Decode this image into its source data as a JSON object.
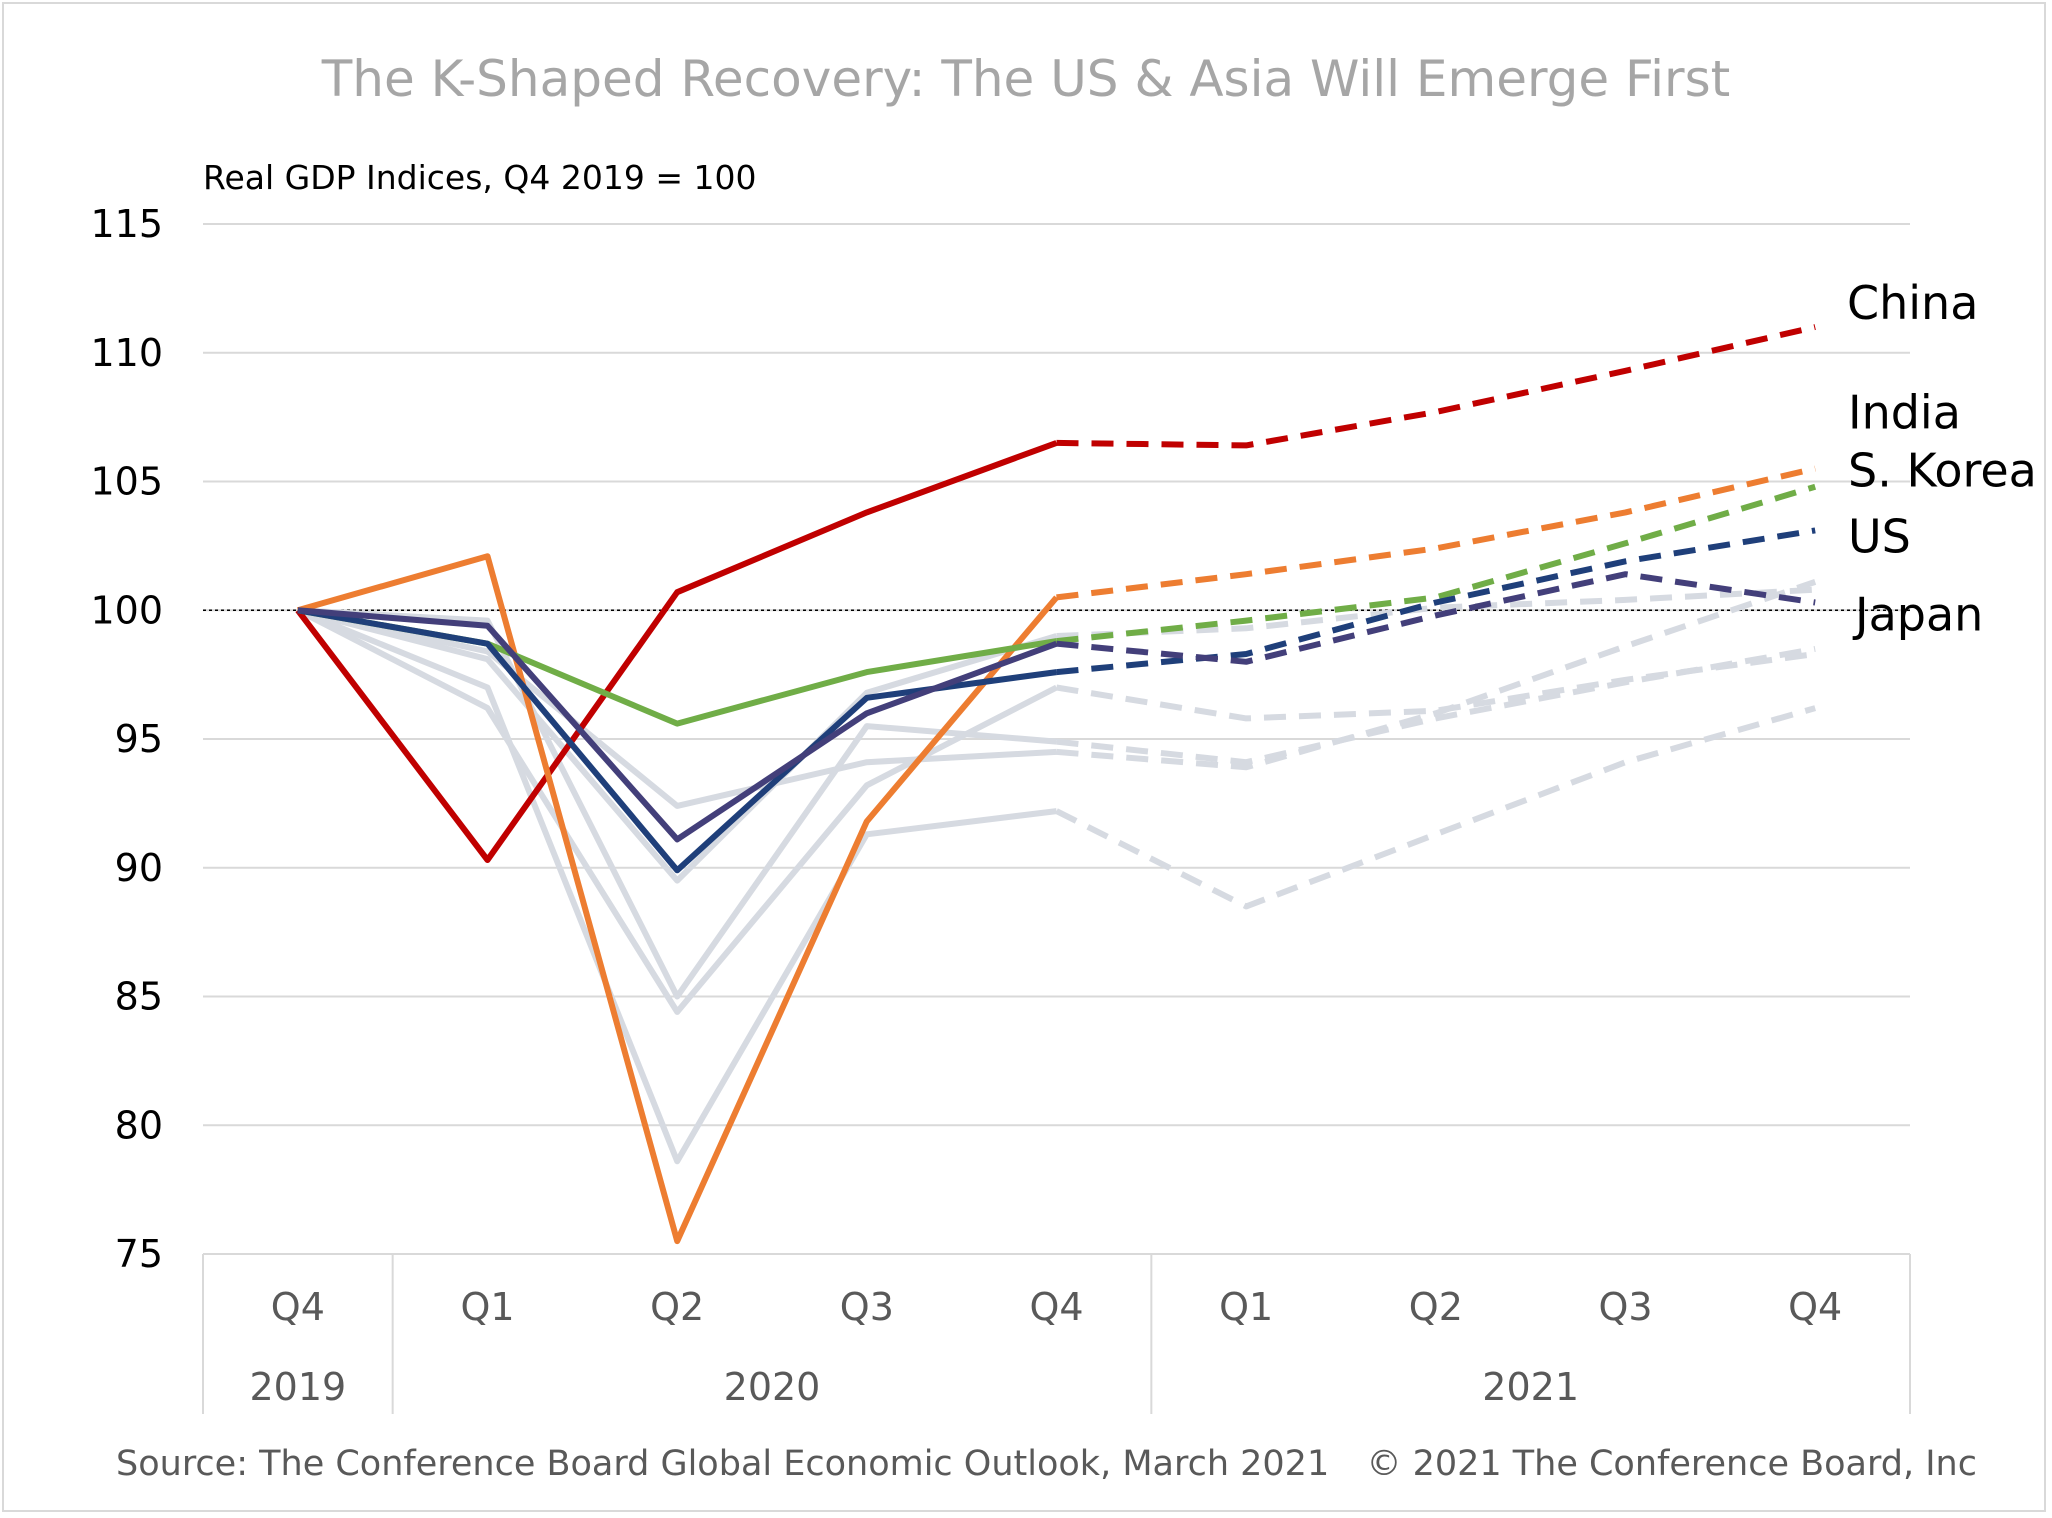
{
  "title": "The K-Shaped Recovery: The US & Asia Will Emerge First",
  "footer": {
    "source": "Source: The Conference Board Global Economic Outlook, March 2021",
    "copyright": "© 2021 The Conference Board, Inc"
  },
  "chart_data": {
    "type": "line",
    "title": "The K-Shaped Recovery: The US & Asia Will Emerge First",
    "subtitle": "Real GDP Indices, Q4 2019 = 100",
    "xlabel": "",
    "ylabel": "",
    "ylim": [
      75,
      115
    ],
    "yticks": [
      75,
      80,
      85,
      90,
      95,
      100,
      105,
      110,
      115
    ],
    "grid": true,
    "reference_line": 100,
    "categories": [
      "Q4",
      "Q1",
      "Q2",
      "Q3",
      "Q4",
      "Q1",
      "Q2",
      "Q3",
      "Q4"
    ],
    "year_groups": [
      {
        "label": "2019",
        "start": 0,
        "end": 0
      },
      {
        "label": "2020",
        "start": 1,
        "end": 4
      },
      {
        "label": "2021",
        "start": 5,
        "end": 8
      }
    ],
    "forecast_start_index": 4,
    "series": [
      {
        "name": "",
        "color": "#d6dae1",
        "values": [
          100,
          96.2,
          84.4,
          93.2,
          97.0,
          95.8,
          96.1,
          97.3,
          98.3
        ]
      },
      {
        "name": "",
        "color": "#d6dae1",
        "values": [
          100,
          97.0,
          78.6,
          91.3,
          92.2,
          88.5,
          91.3,
          94.1,
          96.2
        ]
      },
      {
        "name": "",
        "color": "#d6dae1",
        "values": [
          100,
          98.4,
          92.4,
          94.1,
          94.5,
          93.9,
          96.0,
          98.6,
          101.1
        ]
      },
      {
        "name": "",
        "color": "#d6dae1",
        "values": [
          100,
          99.6,
          85.0,
          95.5,
          94.9,
          94.1,
          95.8,
          97.2,
          98.5
        ]
      },
      {
        "name": "",
        "color": "#d6dae1",
        "values": [
          100,
          98.1,
          89.5,
          96.8,
          99.0,
          99.3,
          100.1,
          100.4,
          100.8
        ]
      },
      {
        "name": "China",
        "color": "#c00000",
        "values": [
          100,
          90.3,
          100.7,
          103.8,
          106.5,
          106.4,
          107.7,
          109.3,
          111.0
        ]
      },
      {
        "name": "India",
        "color": "#ed7d31",
        "values": [
          100,
          102.1,
          75.5,
          91.8,
          100.5,
          101.4,
          102.4,
          103.8,
          105.5
        ]
      },
      {
        "name": "S. Korea",
        "color": "#70ad47",
        "values": [
          100,
          98.7,
          95.6,
          97.6,
          98.8,
          99.6,
          100.5,
          102.6,
          104.8
        ]
      },
      {
        "name": "US",
        "color": "#1f3f7a",
        "values": [
          100,
          98.7,
          89.9,
          96.6,
          97.6,
          98.3,
          100.3,
          101.9,
          103.1
        ]
      },
      {
        "name": "Japan",
        "color": "#433f7a",
        "values": [
          100,
          99.4,
          91.1,
          96.0,
          98.7,
          98.0,
          99.8,
          101.4,
          100.3
        ]
      }
    ]
  }
}
